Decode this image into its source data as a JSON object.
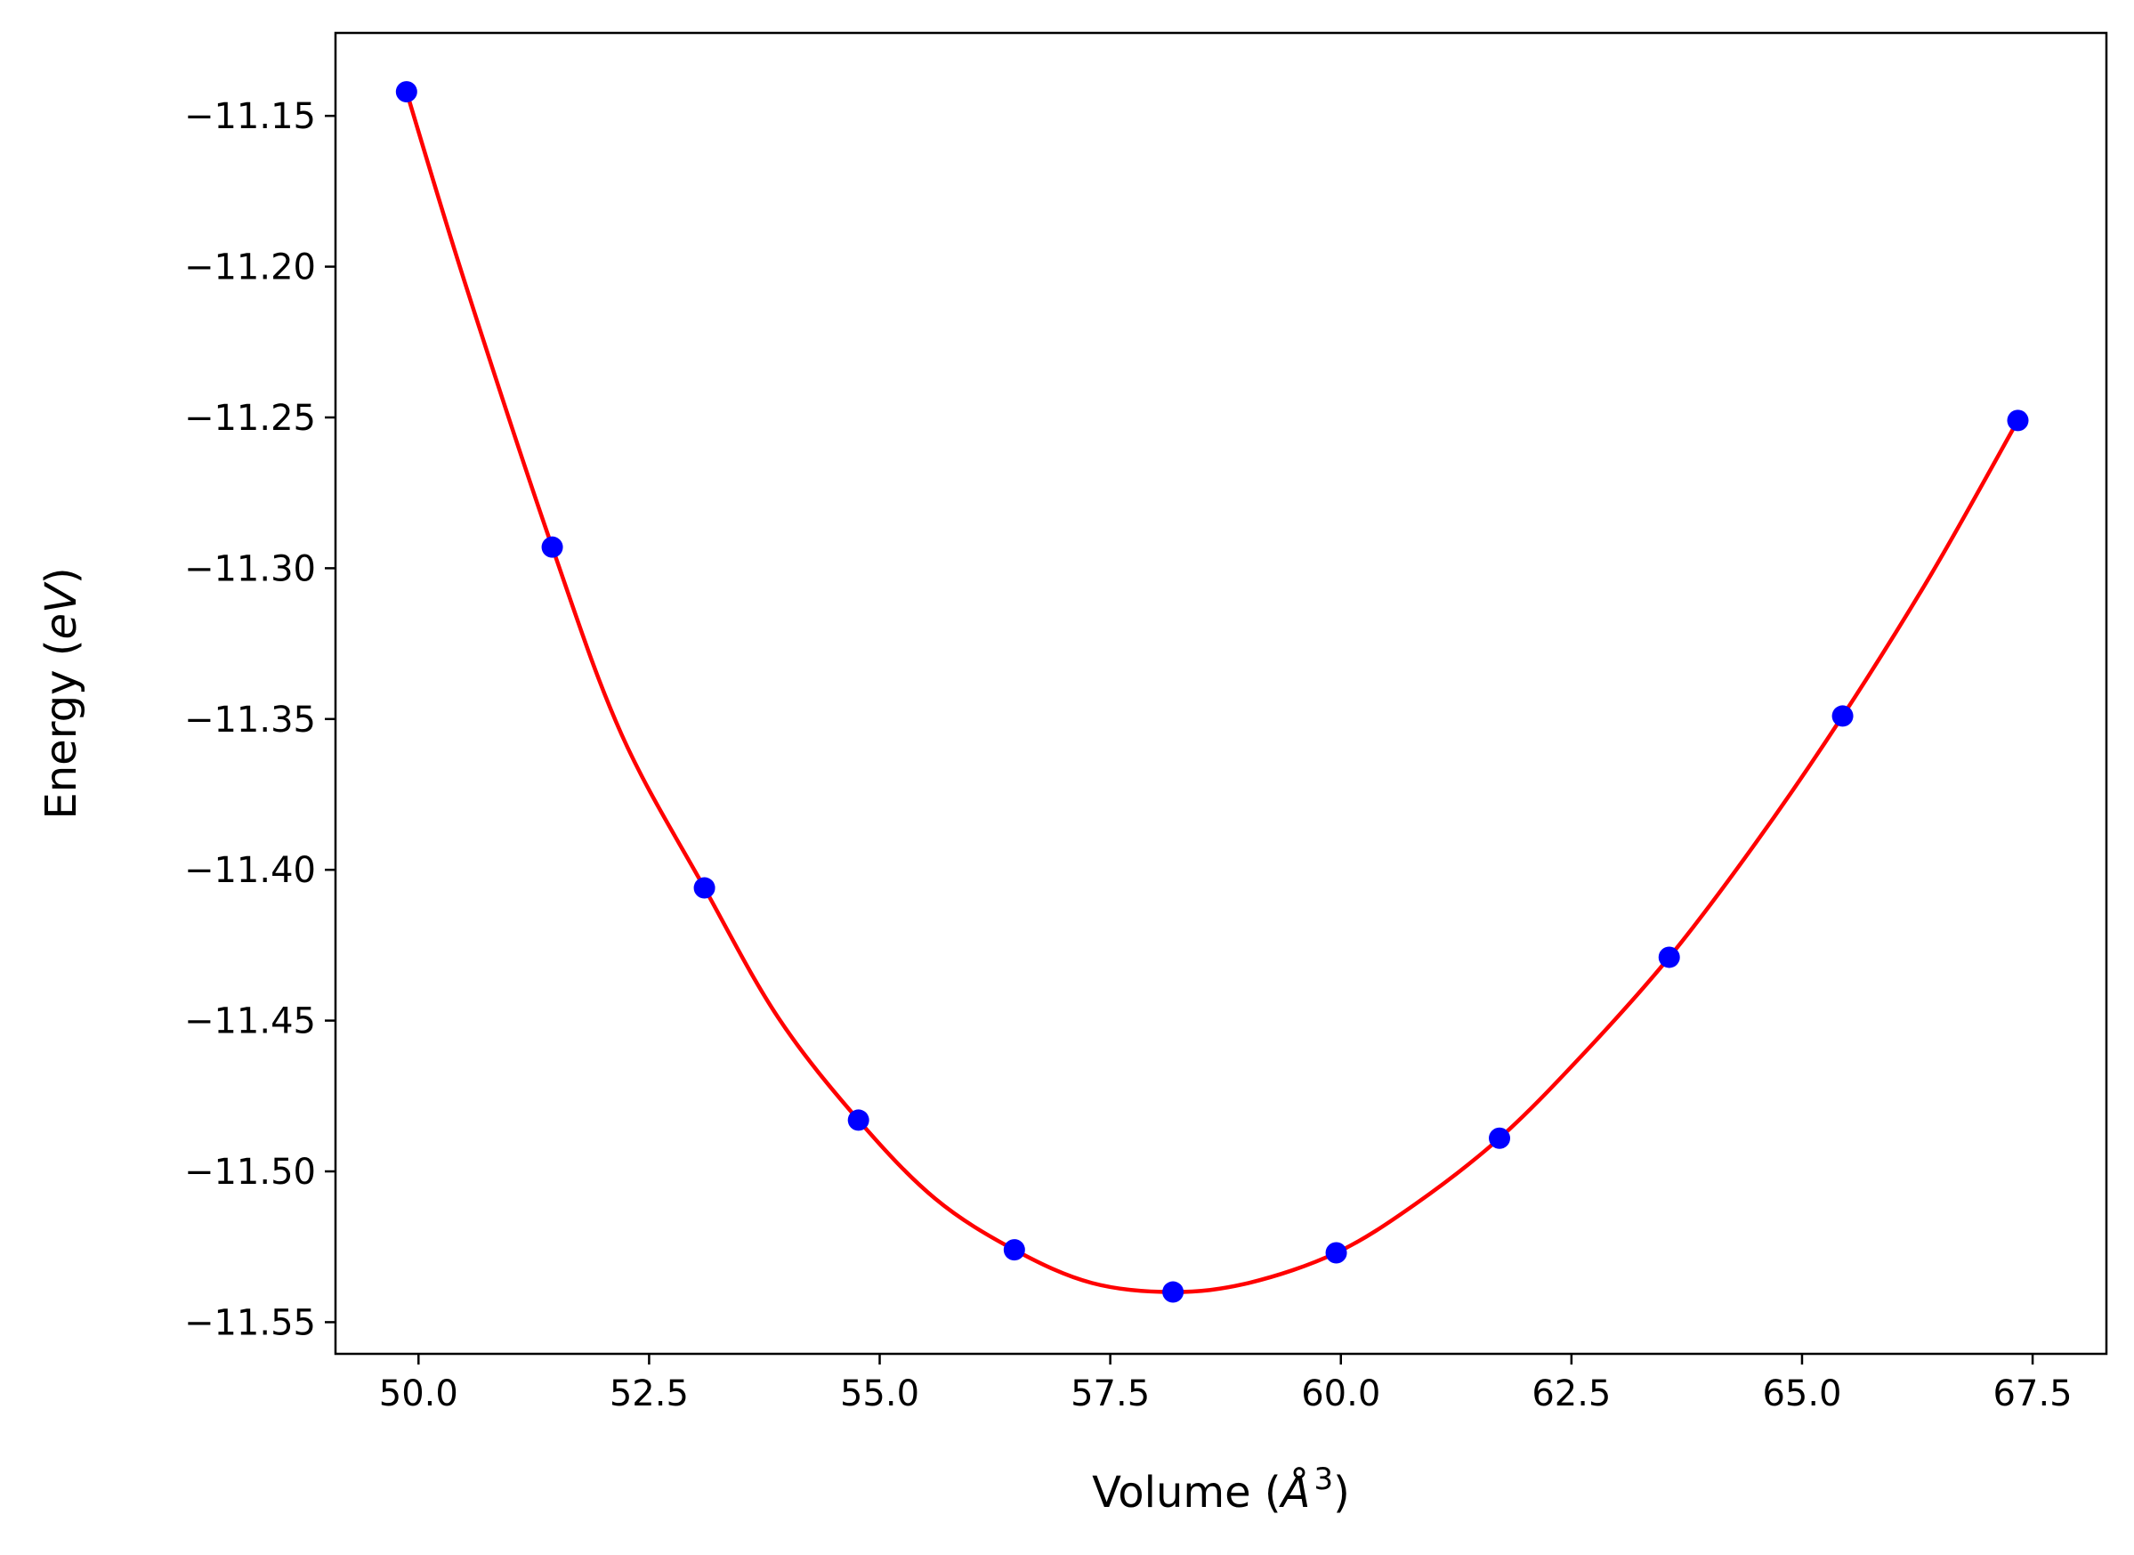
{
  "chart_data": {
    "type": "line",
    "xlabel": "Volume ($\\AA^3$)",
    "xlabel_parts": {
      "prefix": "Volume (",
      "symbol": "Å",
      "superscript": "3",
      "suffix": ")"
    },
    "ylabel": "Energy ($eV$)",
    "ylabel_parts": {
      "prefix": "Energy (",
      "italic": "eV",
      "suffix": ")"
    },
    "xlim": [
      49.1,
      68.3
    ],
    "ylim": [
      -11.5605,
      -11.1225
    ],
    "x_ticks": [
      50.0,
      52.5,
      55.0,
      57.5,
      60.0,
      62.5,
      65.0,
      67.5
    ],
    "x_tick_labels": [
      "50.0",
      "52.5",
      "55.0",
      "57.5",
      "60.0",
      "62.5",
      "65.0",
      "67.5"
    ],
    "y_ticks": [
      -11.15,
      -11.2,
      -11.25,
      -11.3,
      -11.35,
      -11.4,
      -11.45,
      -11.5,
      -11.55
    ],
    "y_tick_labels": [
      "−11.15",
      "−11.20",
      "−11.25",
      "−11.30",
      "−11.35",
      "−11.40",
      "−11.45",
      "−11.50",
      "−11.55"
    ],
    "grid": false,
    "legend": "none",
    "series": [
      {
        "style": "markers",
        "color": "#0000ff",
        "x": [
          49.87,
          51.45,
          53.1,
          54.77,
          56.46,
          58.18,
          59.95,
          61.72,
          63.56,
          65.44,
          67.34
        ],
        "y": [
          -11.142,
          -11.293,
          -11.406,
          -11.483,
          -11.526,
          -11.54,
          -11.527,
          -11.489,
          -11.429,
          -11.349,
          -11.251
        ]
      },
      {
        "style": "line",
        "color": "#ff0000",
        "x": [
          49.87,
          50.5,
          51.45,
          52.2,
          53.1,
          53.9,
          54.77,
          55.6,
          56.46,
          57.3,
          58.18,
          59.0,
          59.95,
          60.8,
          61.72,
          62.6,
          63.56,
          64.5,
          65.44,
          66.4,
          67.34
        ],
        "y": [
          -11.142,
          -11.205,
          -11.293,
          -11.355,
          -11.406,
          -11.449,
          -11.483,
          -11.509,
          -11.526,
          -11.537,
          -11.54,
          -11.537,
          -11.527,
          -11.511,
          -11.489,
          -11.462,
          -11.429,
          -11.391,
          -11.349,
          -11.302,
          -11.251
        ]
      }
    ]
  }
}
